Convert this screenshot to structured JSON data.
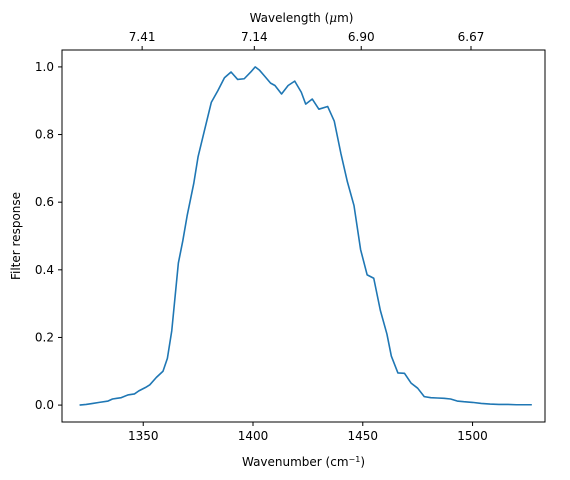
{
  "chart_data": {
    "type": "line",
    "xlabel": "Wavenumber (cm",
    "xlabel_sup": "−1",
    "xlabel_end": ")",
    "ylabel": "Filter response",
    "top_xlabel": "Wavelength (",
    "top_xlabel_mu": "μ",
    "top_xlabel_end": "m)",
    "xlim": [
      1313,
      1533
    ],
    "ylim": [
      -0.05,
      1.05
    ],
    "x_ticks": [
      1350,
      1400,
      1450,
      1500
    ],
    "x_tick_labels": [
      "1350",
      "1400",
      "1450",
      "1500"
    ],
    "y_ticks": [
      0.0,
      0.2,
      0.4,
      0.6,
      0.8,
      1.0
    ],
    "y_tick_labels": [
      "0.0",
      "0.2",
      "0.4",
      "0.6",
      "0.8",
      "1.0"
    ],
    "top_ticks": [
      1349.5,
      1400.6,
      1449.3,
      1499.3
    ],
    "top_tick_labels": [
      "7.41",
      "7.14",
      "6.90",
      "6.67"
    ],
    "series_color": "#1f77b4",
    "series": [
      {
        "x": [
          1321,
          1324,
          1327,
          1330,
          1334,
          1336,
          1338,
          1340,
          1343,
          1346,
          1348,
          1351,
          1353,
          1356,
          1359,
          1361,
          1363,
          1366,
          1368,
          1370,
          1373,
          1375,
          1378,
          1381,
          1384,
          1387,
          1390,
          1393,
          1396,
          1399,
          1401,
          1403,
          1405,
          1408,
          1410,
          1413,
          1416,
          1419,
          1422,
          1424,
          1427,
          1430,
          1434,
          1437,
          1440,
          1443,
          1446,
          1449,
          1452,
          1455,
          1458,
          1461,
          1463,
          1466,
          1469,
          1472,
          1475,
          1478,
          1481,
          1484,
          1487,
          1490,
          1493,
          1496,
          1500,
          1504,
          1508,
          1512,
          1516,
          1520,
          1524,
          1527
        ],
        "y": [
          0.0,
          0.002,
          0.005,
          0.008,
          0.012,
          0.018,
          0.02,
          0.022,
          0.03,
          0.033,
          0.042,
          0.052,
          0.06,
          0.082,
          0.1,
          0.138,
          0.22,
          0.42,
          0.485,
          0.56,
          0.655,
          0.735,
          0.815,
          0.895,
          0.93,
          0.968,
          0.985,
          0.963,
          0.965,
          0.985,
          1.0,
          0.99,
          0.975,
          0.952,
          0.945,
          0.92,
          0.945,
          0.958,
          0.925,
          0.89,
          0.905,
          0.875,
          0.883,
          0.84,
          0.745,
          0.66,
          0.59,
          0.46,
          0.385,
          0.375,
          0.28,
          0.21,
          0.145,
          0.095,
          0.094,
          0.065,
          0.05,
          0.025,
          0.022,
          0.021,
          0.02,
          0.018,
          0.012,
          0.01,
          0.008,
          0.005,
          0.003,
          0.002,
          0.002,
          0.001,
          0.001,
          0.001
        ]
      }
    ]
  }
}
